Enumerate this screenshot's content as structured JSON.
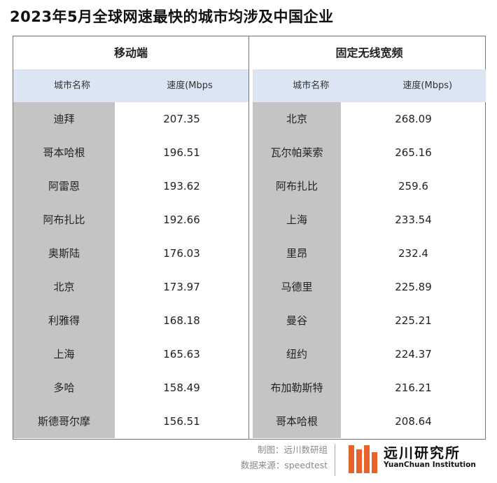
{
  "title": "2023年5月全球网速最快的城市均涉及中国企业",
  "chart_data": [
    {
      "type": "table",
      "title": "移动端",
      "columns": [
        "城市名称",
        "速度(Mbps"
      ],
      "rows": [
        {
          "city": "迪拜",
          "speed": "207.35"
        },
        {
          "city": "哥本哈根",
          "speed": "196.51"
        },
        {
          "city": "阿雷恩",
          "speed": "193.62"
        },
        {
          "city": "阿布扎比",
          "speed": "192.66"
        },
        {
          "city": "奥斯陆",
          "speed": "176.03"
        },
        {
          "city": "北京",
          "speed": "173.97"
        },
        {
          "city": "利雅得",
          "speed": "168.18"
        },
        {
          "city": "上海",
          "speed": "165.63"
        },
        {
          "city": "多哈",
          "speed": "158.49"
        },
        {
          "city": "斯德哥尔摩",
          "speed": "156.51"
        }
      ]
    },
    {
      "type": "table",
      "title": "固定无线宽频",
      "columns": [
        "城市名称",
        "速度(Mbps)"
      ],
      "rows": [
        {
          "city": "北京",
          "speed": "268.09"
        },
        {
          "city": "瓦尔帕莱索",
          "speed": "265.16"
        },
        {
          "city": "阿布扎比",
          "speed": "259.6"
        },
        {
          "city": "上海",
          "speed": "233.54"
        },
        {
          "city": "里昂",
          "speed": "232.4"
        },
        {
          "city": "马德里",
          "speed": "225.89"
        },
        {
          "city": "曼谷",
          "speed": "225.21"
        },
        {
          "city": "纽约",
          "speed": "224.37"
        },
        {
          "city": "布加勒斯特",
          "speed": "216.21"
        },
        {
          "city": "哥本哈根",
          "speed": "208.64"
        }
      ]
    }
  ],
  "footer": {
    "credit": "制图：远川数研组",
    "source": "数据来源：speedtest"
  },
  "logo": {
    "name_cn": "远川研究所",
    "name_en": "YuanChuan Institution",
    "color": "#e8622c"
  }
}
